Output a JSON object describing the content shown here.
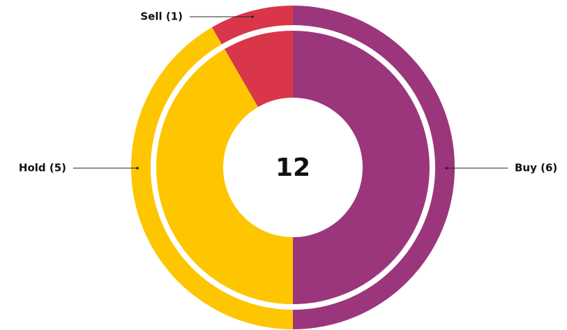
{
  "chart_data": {
    "type": "donut",
    "categories": [
      "Buy",
      "Hold",
      "Sell"
    ],
    "values": [
      6,
      5,
      1
    ],
    "value_labels": [
      "Buy (6)",
      "Hold (5)",
      "Sell (1)"
    ],
    "colors": [
      "#9b367c",
      "#fdc600",
      "#d93649"
    ],
    "center_label": "12"
  }
}
